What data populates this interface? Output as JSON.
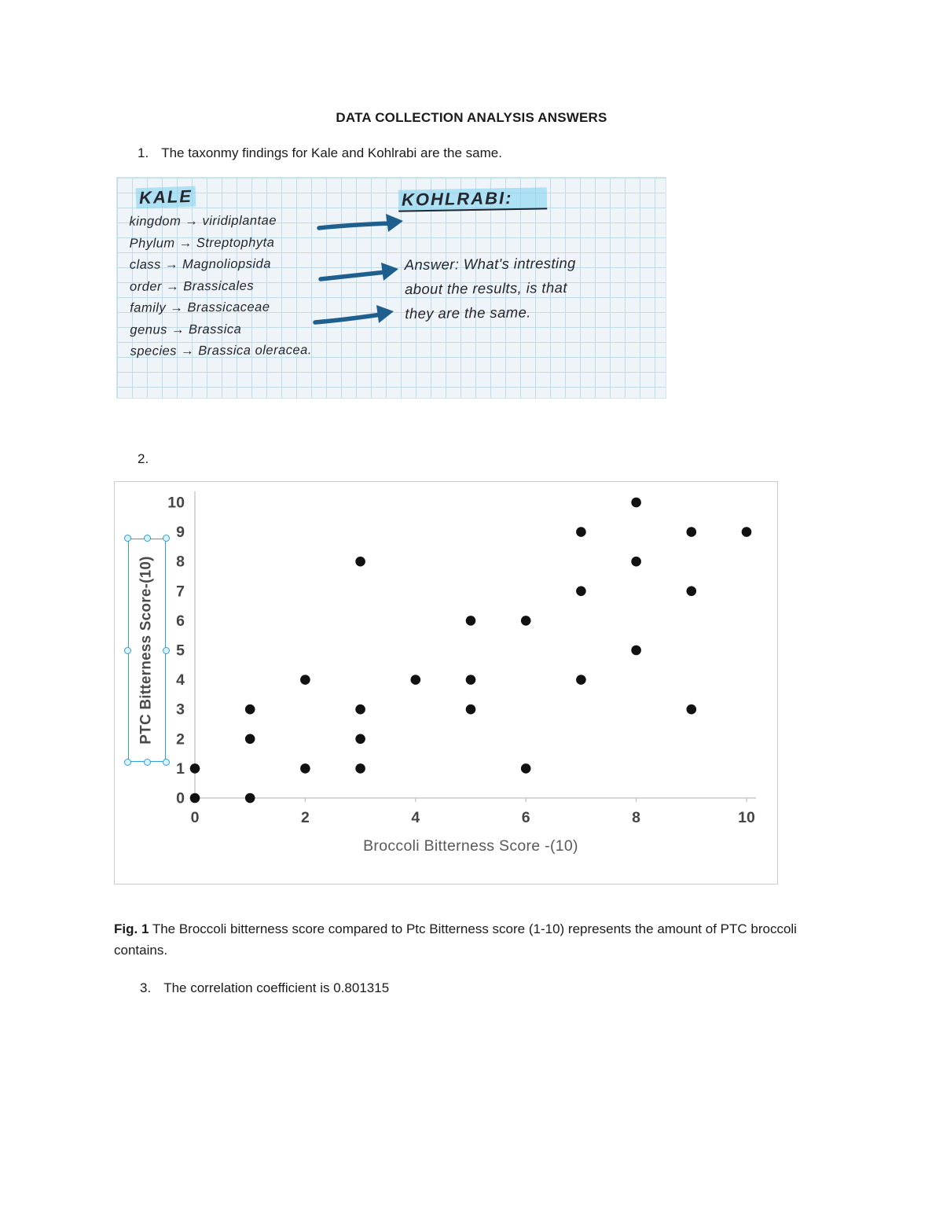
{
  "page": {
    "title": "DATA COLLECTION ANALYSIS ANSWERS",
    "item1_number": "1.",
    "item1": "The taxonmy findings for Kale and Kohlrabi are the same.",
    "item2_number": "2.",
    "fig_caption_bold": "Fig. 1",
    "fig_caption": " The Broccoli bitterness score compared to Ptc Bitterness score (1-10) represents  the amount of PTC broccoli contains.",
    "item3_number": "3.",
    "item3": "The correlation coefficient is 0.801315"
  },
  "handwriting": {
    "kale_title": "KALE",
    "kohlrabi_title": "KOHLRABI:",
    "lines": [
      "kingdom → viridiplantae",
      "Phylum → Streptophyta",
      "class → Magnoliopsida",
      "order → Brassicales",
      "family → Brassicaceae",
      "genus → Brassica",
      "species → Brassica oleracea."
    ],
    "answer_lines": [
      "Answer: What's intresting",
      "about the results, is that",
      "they are the same."
    ]
  },
  "chart_data": {
    "type": "scatter",
    "title": "",
    "xlabel": "Broccoli Bitterness Score -(10)",
    "ylabel": "PTC Bitterness Score-(10)",
    "xlim": [
      0,
      10
    ],
    "ylim": [
      0,
      10
    ],
    "x_ticks": [
      0,
      2,
      4,
      6,
      8,
      10
    ],
    "y_ticks": [
      0,
      1,
      2,
      3,
      4,
      5,
      6,
      7,
      8,
      9,
      10
    ],
    "grid": false,
    "legend": "none",
    "points": [
      [
        0,
        0
      ],
      [
        0,
        1
      ],
      [
        1,
        0
      ],
      [
        1,
        2
      ],
      [
        1,
        3
      ],
      [
        2,
        1
      ],
      [
        2,
        4
      ],
      [
        3,
        1
      ],
      [
        3,
        2
      ],
      [
        3,
        3
      ],
      [
        3,
        8
      ],
      [
        4,
        4
      ],
      [
        5,
        3
      ],
      [
        5,
        4
      ],
      [
        5,
        6
      ],
      [
        6,
        1
      ],
      [
        6,
        6
      ],
      [
        7,
        4
      ],
      [
        7,
        7
      ],
      [
        7,
        9
      ],
      [
        8,
        5
      ],
      [
        8,
        8
      ],
      [
        8,
        10
      ],
      [
        9,
        3
      ],
      [
        9,
        7
      ],
      [
        9,
        9
      ],
      [
        10,
        9
      ]
    ],
    "point_color": "#111111",
    "axis_color": "#bfbfbf",
    "tick_label_color": "#454545"
  }
}
